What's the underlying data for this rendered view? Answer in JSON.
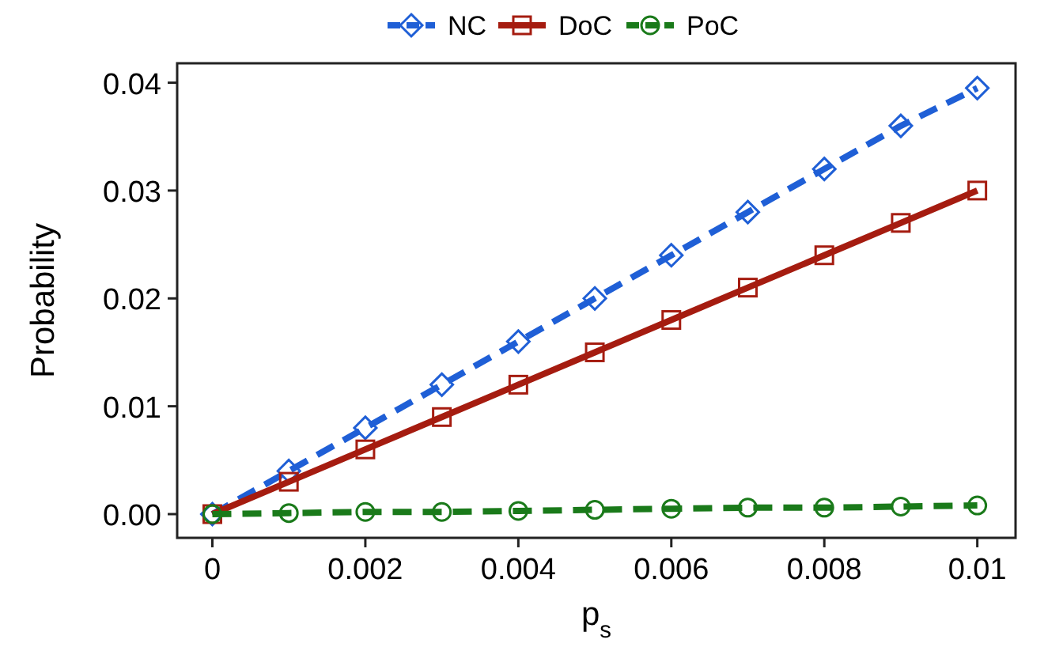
{
  "chart_data": {
    "type": "line",
    "xlabel": "p$_{s}$",
    "ylabel": "Probability",
    "x": [
      0,
      0.001,
      0.002,
      0.003,
      0.004,
      0.005,
      0.006,
      0.007,
      0.008,
      0.009,
      0.01
    ],
    "xlim": [
      -0.00046,
      0.0105
    ],
    "ylim": [
      -0.0022,
      0.0418
    ],
    "xticks": [
      0,
      0.002,
      0.004,
      0.006,
      0.008,
      0.01
    ],
    "yticks": [
      {
        "value": 0,
        "label": "0.00"
      },
      0.01,
      0.02,
      0.03,
      0.04
    ],
    "legend": "top",
    "grid": false,
    "series": [
      {
        "name": "NC",
        "color": "#1f5fd6",
        "marker": "diamond",
        "line_style": "dashed",
        "values": [
          0,
          0.004,
          0.008,
          0.012,
          0.016,
          0.02,
          0.024,
          0.028,
          0.032,
          0.036,
          0.0395
        ]
      },
      {
        "name": "DoC",
        "color": "#a51c10",
        "marker": "square",
        "line_style": "solid",
        "values": [
          0,
          0.003,
          0.006,
          0.009,
          0.012,
          0.015,
          0.018,
          0.021,
          0.024,
          0.027,
          0.03
        ]
      },
      {
        "name": "PoC",
        "color": "#1a7a1a",
        "marker": "circle",
        "line_style": "dashed",
        "values": [
          0,
          0.0001,
          0.0002,
          0.0002,
          0.0003,
          0.0004,
          0.0005,
          0.0006,
          0.0006,
          0.0007,
          0.0008
        ]
      }
    ]
  }
}
